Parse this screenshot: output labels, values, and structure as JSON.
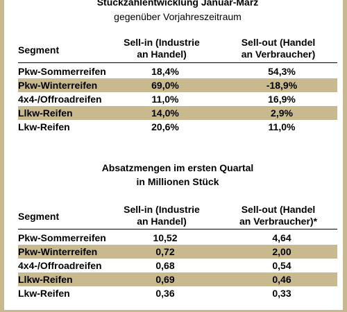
{
  "table1": {
    "title": "Stückzahlentwicklung Januar-März",
    "subtitle": "gegenüber Vorjahreszeitraum",
    "headers": {
      "segment": "Segment",
      "sellin_line1": "Sell-in (Industrie",
      "sellin_line2": "an Handel)",
      "sellout_line1": "Sell-out (Handel",
      "sellout_line2": "an Verbraucher)"
    },
    "rows": [
      {
        "segment": "Pkw-Sommerreifen",
        "sellin": "18,4%",
        "sellout": "54,3%"
      },
      {
        "segment": "Pkw-Winterreifen",
        "sellin": "69,0%",
        "sellout": "-18,9%"
      },
      {
        "segment": "4x4-/Offroadreifen",
        "sellin": "11,0%",
        "sellout": "16,9%"
      },
      {
        "segment": "Llkw-Reifen",
        "sellin": "14,0%",
        "sellout": "2,9%"
      },
      {
        "segment": "Lkw-Reifen",
        "sellin": "20,6%",
        "sellout": "11,0%"
      }
    ]
  },
  "table2": {
    "title": "Absatzmengen im ersten Quartal",
    "subtitle": "in Millionen Stück",
    "headers": {
      "segment": "Segment",
      "sellin_line1": "Sell-in (Industrie",
      "sellin_line2": "an Handel)",
      "sellout_line1": "Sell-out (Handel",
      "sellout_line2": "an Verbraucher)*"
    },
    "rows": [
      {
        "segment": "Pkw-Sommerreifen",
        "sellin": "10,52",
        "sellout": "4,64"
      },
      {
        "segment": "Pkw-Winterreifen",
        "sellin": "0,72",
        "sellout": "2,00"
      },
      {
        "segment": "4x4-/Offroadreifen",
        "sellin": "0,68",
        "sellout": "0,54"
      },
      {
        "segment": "Llkw-Reifen",
        "sellin": "0,69",
        "sellout": "0,46"
      },
      {
        "segment": "Lkw-Reifen",
        "sellin": "0,36",
        "sellout": "0,33"
      }
    ]
  },
  "colors": {
    "shaded_row": "#c9b98f",
    "border": "#c8b88f"
  }
}
